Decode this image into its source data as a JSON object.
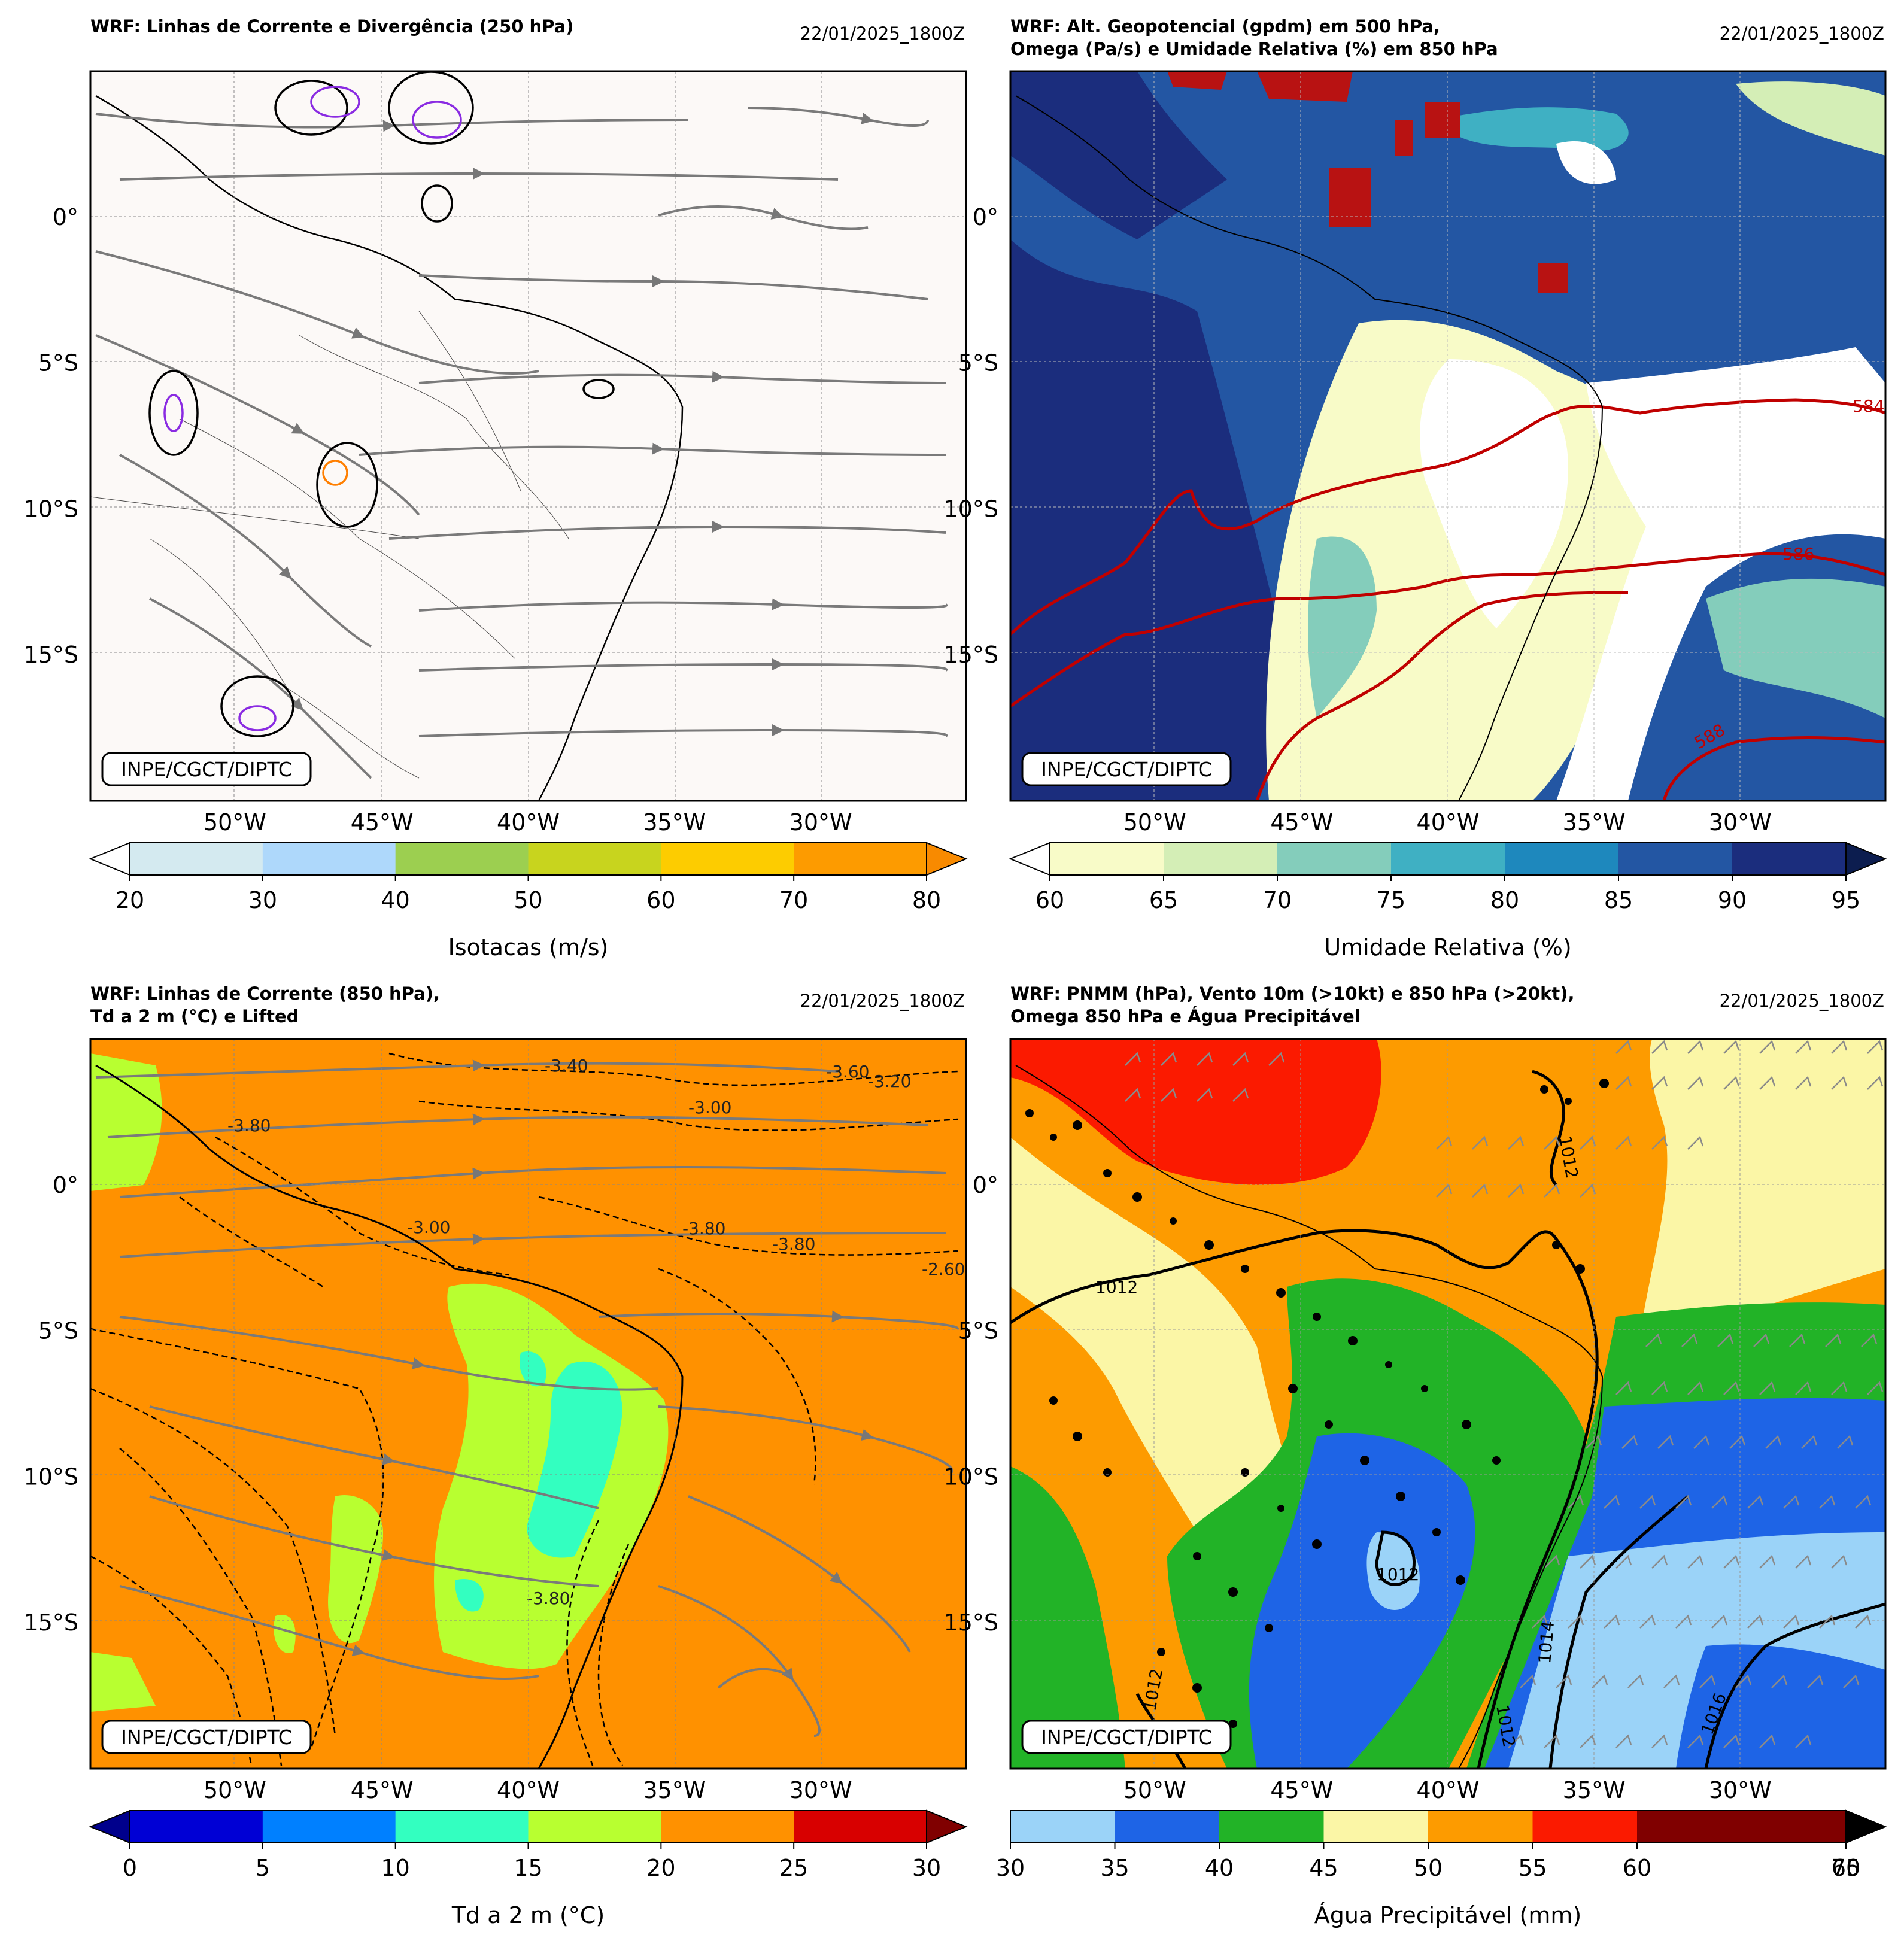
{
  "grid": {
    "lon_labels": [
      "50°W",
      "45°W",
      "40°W",
      "35°W",
      "30°W"
    ],
    "lat_labels": [
      "0°",
      "5°S",
      "10°S",
      "15°S"
    ]
  },
  "credit": "INPE/CGCT/DIPTC",
  "panels": [
    {
      "title_lines": [
        "WRF: Linhas de Corrente e Divergência (250 hPa)"
      ],
      "date": "22/01/2025_1800Z",
      "colorbar": {
        "label": "Isotacas (m/s)",
        "ticks": [
          "20",
          "30",
          "40",
          "50",
          "60",
          "70",
          "80"
        ],
        "colors": [
          "#d4eaf0",
          "#aed8fb",
          "#9ccf50",
          "#c8d41e",
          "#fdcc00",
          "#fd9b00"
        ],
        "extend_left": "#ffffff",
        "extend_right": "#f88a00"
      },
      "contour_labels": []
    },
    {
      "title_lines": [
        "WRF: Alt. Geopotencial (gpdm) em 500 hPa,",
        "Omega (Pa/s) e Umidade Relativa (%) em 850 hPa"
      ],
      "date": "22/01/2025_1800Z",
      "colorbar": {
        "label": "Umidade Relativa (%)",
        "ticks": [
          "60",
          "65",
          "70",
          "75",
          "80",
          "85",
          "90",
          "95"
        ],
        "colors": [
          "#f8fbc8",
          "#d4eeb6",
          "#84cdbb",
          "#3fb0c3",
          "#1e88bd",
          "#2356a3",
          "#1b2d7d"
        ],
        "extend_left": "#ffffff",
        "extend_right": "#0c1d4f"
      },
      "contour_labels": [
        "584",
        "586",
        "588"
      ]
    },
    {
      "title_lines": [
        "WRF: Linhas de Corrente (850 hPa),",
        "Td a 2 m (°C) e Lifted"
      ],
      "date": "22/01/2025_1800Z",
      "colorbar": {
        "label": "Td a 2 m (°C)",
        "ticks": [
          "0",
          "5",
          "10",
          "15",
          "20",
          "25",
          "30"
        ],
        "colors": [
          "#0000d5",
          "#0080ff",
          "#33ffc0",
          "#b8ff30",
          "#ff9100",
          "#d80000"
        ],
        "extend_left": "#00008c",
        "extend_right": "#800000"
      },
      "contour_labels": [
        "-3.80",
        "-3.40",
        "-3.00",
        "-3.60",
        "-3.80",
        "-3.80",
        "-3.20",
        "-3.00",
        "-2.60",
        "-3.80"
      ]
    },
    {
      "title_lines": [
        "WRF: PNMM (hPa), Vento 10m (>10kt) e 850 hPa (>20kt),",
        "Omega 850 hPa e Água Precipitável"
      ],
      "date": "22/01/2025_1800Z",
      "colorbar": {
        "label": "Água Precipitável (mm)",
        "ticks": [
          "30",
          "35",
          "40",
          "45",
          "50",
          "55",
          "60",
          "65",
          "70"
        ],
        "colors": [
          "#9bd3f8",
          "#1e64e6",
          "#22b327",
          "#fbf6a6",
          "#fd9b00",
          "#fb1a00",
          "#800000",
          "#800000"
        ],
        "extend_right": "#000000"
      },
      "contour_labels": [
        "1012",
        "1012",
        "1014",
        "1016",
        "1012",
        "1012",
        "1012"
      ]
    }
  ]
}
